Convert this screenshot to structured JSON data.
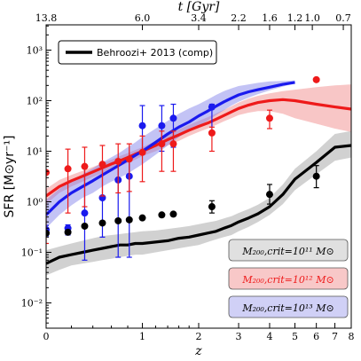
{
  "chart_data": {
    "type": "line",
    "xlabel": "z",
    "ylabel_main": "SFR",
    "ylabel_unit": "[M⊙yr⁻¹]",
    "xlim": [
      0,
      8
    ],
    "ylim_log10": [
      -2.5,
      3.5
    ],
    "x_scale": "log1p",
    "y_scale": "log",
    "x_ticks": [
      "0",
      "1",
      "2",
      "3",
      "4",
      "5",
      "6",
      "7",
      "8"
    ],
    "x_tick_values": [
      0,
      1,
      2,
      3,
      4,
      5,
      6,
      7,
      8
    ],
    "y_ticks": [
      "10⁻²",
      "10⁻¹",
      "10⁰",
      "10¹",
      "10²",
      "10³"
    ],
    "top_axis_label": "t [Gyr]",
    "top_ticks": [
      {
        "label": "13.8",
        "z": 0.0
      },
      {
        "label": "6.0",
        "z": 1.0
      },
      {
        "label": "3.4",
        "z": 2.0
      },
      {
        "label": "2.2",
        "z": 3.0
      },
      {
        "label": "1.6",
        "z": 4.0
      },
      {
        "label": "1.2",
        "z": 5.0
      },
      {
        "label": "1.0",
        "z": 5.8
      },
      {
        "label": "0.7",
        "z": 7.5
      }
    ],
    "legend": "Behroozi+ 2013 (comp)",
    "series": [
      {
        "name": "M200,crit=10^13 M⊙",
        "color": "#1a1aee",
        "band_color": "#7a7ae8",
        "line": {
          "z": [
            0.0,
            0.1,
            0.2,
            0.3,
            0.4,
            0.5,
            0.6,
            0.7,
            0.8,
            0.9,
            1.0,
            1.2,
            1.4,
            1.6,
            1.8,
            2.0,
            2.2,
            2.4,
            2.6,
            2.8,
            3.0,
            3.3,
            3.6,
            4.0,
            4.5,
            5.0
          ],
          "y": [
            0.55,
            1.0,
            1.5,
            2.0,
            2.6,
            3.4,
            4.3,
            5.4,
            6.7,
            8.3,
            10,
            15,
            22,
            30,
            38,
            50,
            62,
            78,
            95,
            112,
            130,
            150,
            165,
            185,
            210,
            230
          ]
        },
        "band": {
          "z": [
            0.0,
            0.1,
            0.2,
            0.3,
            0.4,
            0.5,
            0.6,
            0.7,
            0.8,
            0.9,
            1.0,
            1.2,
            1.4,
            1.6,
            1.8,
            2.0,
            2.2,
            2.4,
            2.6,
            2.8,
            3.0,
            3.3,
            3.6,
            4.0,
            4.5,
            5.0
          ],
          "lo": [
            0.3,
            0.55,
            0.85,
            1.2,
            1.5,
            2.0,
            2.5,
            3.0,
            3.6,
            4.5,
            5.5,
            8.5,
            13,
            19,
            25,
            32,
            40,
            52,
            65,
            80,
            95,
            115,
            135,
            160,
            190,
            220
          ],
          "hi": [
            1.1,
            1.8,
            2.6,
            3.5,
            4.6,
            6.0,
            7.6,
            9.4,
            12,
            15,
            19,
            28,
            40,
            55,
            70,
            85,
            105,
            130,
            155,
            175,
            195,
            210,
            225,
            240,
            245,
            250
          ]
        },
        "points": {
          "z": [
            0.0,
            0.17,
            0.32,
            0.5,
            0.68,
            0.82,
            1.0,
            1.3,
            1.5,
            2.3
          ],
          "y": [
            0.28,
            0.3,
            0.6,
            1.2,
            2.7,
            3.2,
            32,
            32,
            45,
            75
          ],
          "err_lo": [
            0.21,
            0.22,
            0.07,
            0.2,
            0.08,
            0.08,
            10,
            10,
            12,
            22
          ],
          "err_hi": [
            0.34,
            0.35,
            5.0,
            6.0,
            6.5,
            6.8,
            80,
            80,
            85,
            85
          ]
        }
      },
      {
        "name": "M200,crit=10^12 M⊙",
        "color": "#ee1a1a",
        "band_color": "#f08080",
        "line": {
          "z": [
            0.0,
            0.1,
            0.2,
            0.3,
            0.4,
            0.5,
            0.6,
            0.7,
            0.8,
            0.9,
            1.0,
            1.2,
            1.4,
            1.6,
            1.8,
            2.0,
            2.2,
            2.4,
            2.6,
            2.8,
            3.0,
            3.3,
            3.6,
            4.0,
            4.5,
            5.0,
            6.0,
            7.0,
            8.0
          ],
          "y": [
            1.3,
            2.0,
            2.6,
            3.2,
            3.9,
            4.7,
            5.6,
            6.5,
            7.5,
            8.7,
            10,
            13,
            17,
            21,
            26,
            31,
            36,
            43,
            51,
            60,
            70,
            82,
            92,
            100,
            105,
            100,
            85,
            75,
            68
          ]
        },
        "band": {
          "z": [
            0.0,
            0.1,
            0.2,
            0.3,
            0.4,
            0.5,
            0.6,
            0.7,
            0.8,
            0.9,
            1.0,
            1.2,
            1.4,
            1.6,
            1.8,
            2.0,
            2.2,
            2.4,
            2.6,
            2.8,
            3.0,
            3.3,
            3.6,
            4.0,
            4.5,
            5.0,
            6.0,
            7.0,
            8.0
          ],
          "lo": [
            0.9,
            1.5,
            2.0,
            2.5,
            3.1,
            3.7,
            4.4,
            5.1,
            5.9,
            6.8,
            8,
            10,
            13,
            16,
            20,
            24,
            28,
            33,
            39,
            45,
            52,
            58,
            62,
            62,
            55,
            45,
            35,
            28,
            24
          ],
          "hi": [
            1.8,
            2.7,
            3.4,
            4.1,
            4.9,
            5.8,
            6.8,
            8.0,
            9.2,
            10.6,
            12,
            16,
            21,
            27,
            33,
            40,
            47,
            56,
            66,
            78,
            92,
            110,
            125,
            140,
            155,
            165,
            185,
            200,
            210
          ]
        },
        "points": {
          "z": [
            0.0,
            0.17,
            0.32,
            0.5,
            0.68,
            0.82,
            1.0,
            1.3,
            1.5,
            2.3,
            4.0,
            6.0
          ],
          "y": [
            3.8,
            4.5,
            5.0,
            5.5,
            6.3,
            7.0,
            9.5,
            14,
            14,
            23,
            45,
            260
          ],
          "err_lo": [
            0.15,
            0.6,
            0.8,
            1.3,
            1.5,
            1.6,
            2.5,
            4,
            4,
            10,
            28,
            260
          ],
          "err_hi": [
            3.8,
            11,
            12,
            13,
            14,
            14,
            20,
            25,
            25,
            30,
            65,
            260
          ]
        }
      },
      {
        "name": "M200,crit=10^11 M⊙",
        "color": "#000000",
        "band_color": "#9a9a9a",
        "line": {
          "z": [
            0.0,
            0.1,
            0.2,
            0.3,
            0.4,
            0.5,
            0.6,
            0.7,
            0.8,
            0.9,
            1.0,
            1.2,
            1.4,
            1.6,
            1.8,
            2.0,
            2.2,
            2.4,
            2.6,
            2.8,
            3.0,
            3.3,
            3.6,
            4.0,
            4.5,
            5.0,
            6.0,
            7.0,
            8.0
          ],
          "y": [
            0.06,
            0.08,
            0.09,
            0.1,
            0.11,
            0.12,
            0.13,
            0.14,
            0.14,
            0.15,
            0.15,
            0.16,
            0.17,
            0.19,
            0.2,
            0.22,
            0.24,
            0.26,
            0.3,
            0.34,
            0.4,
            0.48,
            0.58,
            0.8,
            1.4,
            2.8,
            6.0,
            12,
            13
          ]
        },
        "band": {
          "z": [
            0.0,
            0.1,
            0.2,
            0.3,
            0.4,
            0.5,
            0.6,
            0.7,
            0.8,
            0.9,
            1.0,
            1.2,
            1.4,
            1.6,
            1.8,
            2.0,
            2.2,
            2.4,
            2.6,
            2.8,
            3.0,
            3.3,
            3.6,
            4.0,
            4.5,
            5.0,
            6.0,
            7.0,
            8.0
          ],
          "lo": [
            0.035,
            0.045,
            0.055,
            0.06,
            0.065,
            0.07,
            0.075,
            0.08,
            0.085,
            0.09,
            0.09,
            0.1,
            0.11,
            0.12,
            0.13,
            0.14,
            0.16,
            0.18,
            0.2,
            0.22,
            0.26,
            0.32,
            0.4,
            0.55,
            0.9,
            1.7,
            3.5,
            6.5,
            7.5
          ],
          "hi": [
            0.11,
            0.13,
            0.15,
            0.17,
            0.19,
            0.21,
            0.22,
            0.23,
            0.24,
            0.25,
            0.26,
            0.27,
            0.29,
            0.31,
            0.33,
            0.36,
            0.39,
            0.42,
            0.47,
            0.52,
            0.6,
            0.72,
            0.88,
            1.2,
            2.2,
            4.5,
            10,
            22,
            25
          ]
        },
        "points": {
          "z": [
            0.0,
            0.17,
            0.32,
            0.5,
            0.68,
            0.82,
            1.0,
            1.3,
            1.5,
            2.3,
            4.0,
            6.0
          ],
          "y": [
            0.24,
            0.25,
            0.33,
            0.38,
            0.42,
            0.44,
            0.48,
            0.55,
            0.57,
            0.8,
            1.4,
            3.2
          ],
          "err_lo": [
            0.24,
            0.25,
            0.33,
            0.38,
            0.42,
            0.44,
            0.48,
            0.55,
            0.57,
            0.6,
            0.9,
            1.9
          ],
          "err_hi": [
            0.24,
            0.25,
            0.33,
            0.38,
            0.42,
            0.44,
            0.48,
            0.55,
            0.57,
            1.05,
            2.2,
            5.2
          ]
        }
      }
    ],
    "box_labels": [
      {
        "text": "M₂₀₀,crit=10¹¹ M⊙",
        "color": "#000000",
        "fill": "#e0e0e0"
      },
      {
        "text": "M₂₀₀,crit=10¹² M⊙",
        "color": "#ee1a1a",
        "fill": "#f8c8c8"
      },
      {
        "text": "M₂₀₀,crit=10¹³ M⊙",
        "color": "#000000",
        "fill": "#d0d0f6"
      }
    ]
  }
}
